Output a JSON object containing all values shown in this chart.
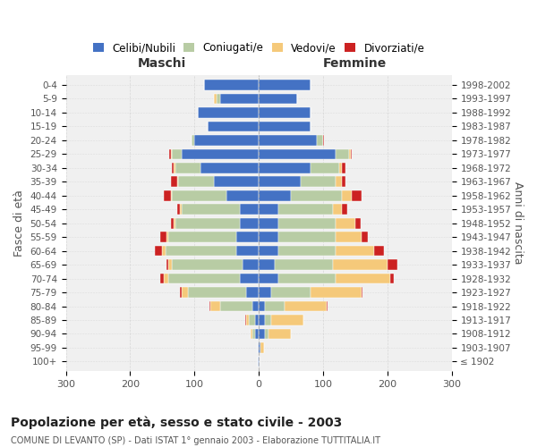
{
  "age_groups": [
    "100+",
    "95-99",
    "90-94",
    "85-89",
    "80-84",
    "75-79",
    "70-74",
    "65-69",
    "60-64",
    "55-59",
    "50-54",
    "45-49",
    "40-44",
    "35-39",
    "30-34",
    "25-29",
    "20-24",
    "15-19",
    "10-14",
    "5-9",
    "0-4"
  ],
  "birth_years": [
    "≤ 1902",
    "1903-1907",
    "1908-1912",
    "1913-1917",
    "1918-1922",
    "1923-1927",
    "1928-1932",
    "1933-1937",
    "1938-1942",
    "1943-1947",
    "1948-1952",
    "1953-1957",
    "1958-1962",
    "1963-1967",
    "1968-1972",
    "1973-1977",
    "1978-1982",
    "1983-1987",
    "1988-1992",
    "1993-1997",
    "1998-2002"
  ],
  "maschi_celibi": [
    1,
    1,
    5,
    5,
    10,
    20,
    30,
    25,
    35,
    35,
    30,
    30,
    50,
    70,
    90,
    120,
    100,
    80,
    95,
    60,
    85
  ],
  "maschi_coniugati": [
    0,
    0,
    5,
    10,
    50,
    90,
    110,
    110,
    110,
    105,
    100,
    90,
    85,
    55,
    40,
    15,
    5,
    0,
    0,
    5,
    0
  ],
  "maschi_vedovi": [
    0,
    0,
    2,
    5,
    15,
    10,
    8,
    5,
    5,
    3,
    2,
    2,
    2,
    2,
    2,
    2,
    0,
    0,
    0,
    5,
    0
  ],
  "maschi_divorziati": [
    0,
    0,
    0,
    1,
    1,
    2,
    5,
    3,
    12,
    10,
    5,
    5,
    10,
    10,
    3,
    2,
    0,
    0,
    0,
    0,
    0
  ],
  "femmine_celibi": [
    1,
    3,
    10,
    10,
    10,
    20,
    30,
    25,
    30,
    30,
    30,
    30,
    50,
    65,
    80,
    120,
    90,
    80,
    80,
    60,
    80
  ],
  "femmine_coniugati": [
    0,
    0,
    5,
    10,
    30,
    60,
    90,
    90,
    90,
    90,
    90,
    85,
    80,
    55,
    45,
    20,
    10,
    0,
    0,
    0,
    0
  ],
  "femmine_vedovi": [
    0,
    5,
    35,
    50,
    65,
    80,
    85,
    85,
    60,
    40,
    30,
    15,
    15,
    10,
    5,
    3,
    0,
    0,
    0,
    0,
    0
  ],
  "femmine_divorziati": [
    0,
    0,
    0,
    0,
    2,
    2,
    5,
    15,
    15,
    10,
    8,
    8,
    15,
    5,
    5,
    2,
    2,
    0,
    0,
    0,
    0
  ],
  "color_celibi": "#4472c4",
  "color_coniugati": "#b8cca4",
  "color_vedovi": "#f5c97a",
  "color_divorziati": "#cc2222",
  "xlim": 300,
  "title": "Popolazione per età, sesso e stato civile - 2003",
  "subtitle": "COMUNE DI LEVANTO (SP) - Dati ISTAT 1° gennaio 2003 - Elaborazione TUTTITALIA.IT",
  "ylabel_left": "Fasce di età",
  "ylabel_right": "Anni di nascita",
  "xlabel_maschi": "Maschi",
  "xlabel_femmine": "Femmine",
  "bg_color": "#ffffff",
  "grid_color": "#cccccc"
}
